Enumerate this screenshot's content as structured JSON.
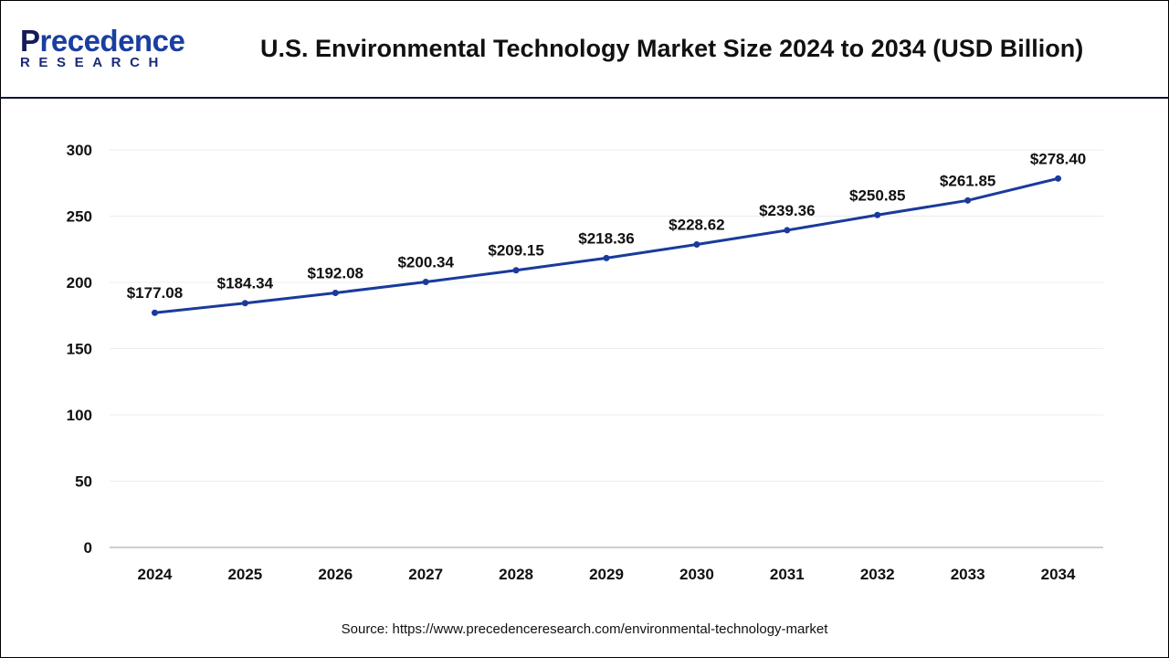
{
  "logo": {
    "top": "Precedence",
    "bottom": "RESEARCH"
  },
  "header": {
    "title": "U.S. Environmental Technology Market Size 2024 to 2034 (USD Billion)"
  },
  "source": "Source: https://www.precedenceresearch.com/environmental-technology-market",
  "colors": {
    "line": "#1a3a9c",
    "header_rule": "#0e1330",
    "grid": "#ececec"
  },
  "chart_data": {
    "type": "line",
    "title": "U.S. Environmental Technology Market Size 2024 to 2034 (USD Billion)",
    "categories": [
      "2024",
      "2025",
      "2026",
      "2027",
      "2028",
      "2029",
      "2030",
      "2031",
      "2032",
      "2033",
      "2034"
    ],
    "values": [
      177.08,
      184.34,
      192.08,
      200.34,
      209.15,
      218.36,
      228.62,
      239.36,
      250.85,
      261.85,
      278.4
    ],
    "data_labels": [
      "$177.08",
      "$184.34",
      "$192.08",
      "$200.34",
      "$209.15",
      "$218.36",
      "$228.62",
      "$239.36",
      "$250.85",
      "$261.85",
      "$278.40"
    ],
    "yticks": [
      0,
      50,
      100,
      150,
      200,
      250,
      300
    ],
    "ylim": [
      0,
      300
    ],
    "grid": true,
    "legend": "none"
  }
}
